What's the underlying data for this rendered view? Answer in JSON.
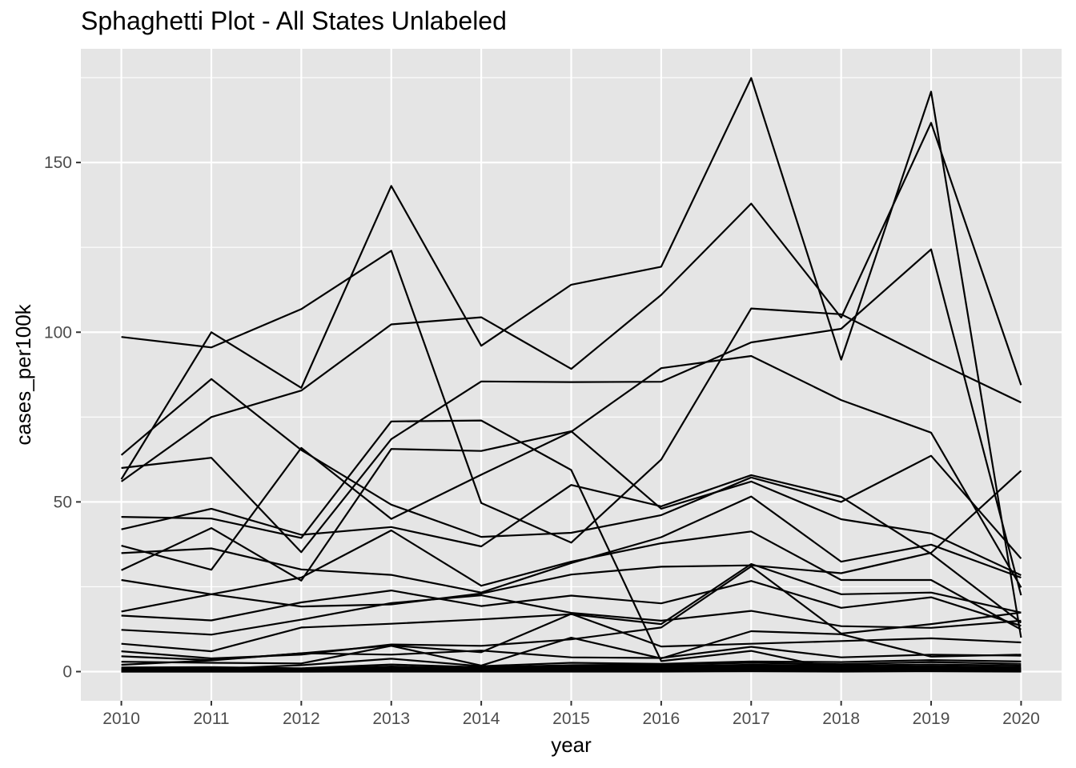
{
  "chart_data": {
    "type": "line",
    "title": "Sphaghetti Plot - All States Unlabeled",
    "xlabel": "year",
    "ylabel": "cases_per100k",
    "x": [
      2010,
      2011,
      2012,
      2013,
      2014,
      2015,
      2016,
      2017,
      2018,
      2019,
      2020
    ],
    "x_ticks": [
      "2010",
      "2011",
      "2012",
      "2013",
      "2014",
      "2015",
      "2016",
      "2017",
      "2018",
      "2019",
      "2020"
    ],
    "y_ticks": [
      0,
      50,
      100,
      150
    ],
    "xlim": [
      2009.55,
      2020.45
    ],
    "ylim": [
      -8.6,
      183.5
    ],
    "grid": true,
    "legend": "none",
    "colors": {
      "panel": "#e5e5e5",
      "grid": "#ffffff",
      "line": "#000000",
      "tick_text": "#4d4d4d",
      "tick_mark": "#333333"
    },
    "series": [
      {
        "values": [
          98.6,
          95.5,
          106.8,
          124.0,
          49.7,
          38.0,
          62.5,
          107.0,
          105.3,
          92.0,
          79.3
        ]
      },
      {
        "values": [
          63.8,
          86.2,
          65.3,
          49.2,
          39.7,
          40.9,
          46.1,
          57.2,
          50.0,
          63.6,
          33.3
        ]
      },
      {
        "values": [
          56.7,
          100.0,
          83.6,
          143.1,
          96.0,
          114.0,
          119.3,
          174.9,
          91.9,
          170.9,
          10.0
        ]
      },
      {
        "values": [
          56.0,
          75.0,
          82.8,
          102.3,
          104.4,
          89.2,
          111.0,
          137.9,
          104.3,
          161.7,
          84.4
        ]
      },
      {
        "values": [
          60.0,
          63.0,
          35.2,
          68.5,
          85.5,
          85.3,
          85.4,
          97.0,
          101.0,
          124.4,
          22.5
        ]
      },
      {
        "values": [
          45.6,
          45.1,
          39.4,
          73.7,
          74.0,
          59.4,
          3.1,
          6.1,
          0.5,
          1.0,
          0.8
        ]
      },
      {
        "values": [
          41.9,
          48.0,
          40.3,
          42.6,
          36.9,
          55.0,
          48.7,
          57.9,
          51.5,
          34.7,
          14.4
        ]
      },
      {
        "values": [
          29.9,
          42.3,
          26.8,
          65.6,
          65.0,
          70.8,
          48.0,
          56.0,
          44.9,
          40.7,
          28.4
        ]
      },
      {
        "values": [
          37.1,
          30.0,
          65.9,
          45.0,
          58.0,
          70.7,
          89.4,
          93.0,
          80.0,
          70.4,
          24.8
        ]
      },
      {
        "values": [
          34.9,
          36.3,
          30.1,
          28.5,
          23.3,
          32.0,
          39.6,
          51.6,
          32.4,
          37.4,
          27.7
        ]
      },
      {
        "values": [
          27.0,
          22.8,
          27.7,
          41.6,
          25.3,
          32.4,
          37.8,
          41.3,
          27.0,
          27.0,
          12.4
        ]
      },
      {
        "values": [
          17.7,
          22.8,
          19.2,
          19.8,
          23.0,
          28.6,
          30.9,
          31.3,
          29.0,
          35.0,
          59.2
        ]
      },
      {
        "values": [
          16.5,
          15.1,
          20.4,
          23.9,
          19.3,
          22.4,
          20.1,
          26.7,
          18.8,
          21.9,
          13.5
        ]
      },
      {
        "values": [
          12.3,
          10.9,
          15.3,
          20.2,
          22.5,
          17.3,
          15.0,
          17.9,
          13.4,
          12.9,
          15.0
        ]
      },
      {
        "values": [
          8.2,
          6.0,
          13.0,
          14.1,
          15.4,
          16.9,
          14.0,
          31.7,
          22.8,
          23.3,
          17.4
        ]
      },
      {
        "values": [
          6.0,
          3.9,
          5.0,
          8.0,
          7.6,
          9.5,
          13.0,
          31.0,
          11.2,
          14.0,
          17.4
        ]
      },
      {
        "values": [
          4.5,
          3.4,
          5.4,
          7.7,
          5.7,
          17.0,
          7.4,
          8.2,
          9.0,
          9.8,
          8.6
        ]
      },
      {
        "values": [
          2.9,
          2.6,
          2.4,
          7.6,
          1.8,
          10.0,
          3.9,
          11.9,
          11.0,
          4.4,
          5.0
        ]
      },
      {
        "values": [
          2.0,
          3.3,
          5.4,
          5.0,
          6.2,
          4.2,
          4.0,
          7.3,
          4.2,
          5.0,
          4.7
        ]
      },
      {
        "values": [
          1.0,
          0.8,
          1.9,
          3.8,
          1.6,
          2.6,
          2.3,
          3.0,
          2.8,
          3.4,
          3.0
        ]
      },
      {
        "values": [
          1.2,
          1.3,
          1.0,
          2.1,
          1.3,
          1.9,
          2.1,
          2.6,
          2.2,
          2.8,
          2.3
        ]
      },
      {
        "values": [
          0.8,
          0.9,
          0.8,
          1.5,
          1.0,
          1.5,
          1.7,
          2.0,
          1.8,
          2.1,
          1.8
        ]
      },
      {
        "values": [
          0.6,
          0.6,
          0.6,
          1.1,
          0.8,
          1.2,
          1.3,
          1.7,
          1.4,
          1.6,
          1.3
        ]
      },
      {
        "values": [
          0.4,
          0.4,
          0.5,
          0.8,
          0.6,
          0.9,
          1.0,
          1.3,
          1.1,
          1.2,
          1.0
        ]
      },
      {
        "values": [
          0.3,
          0.3,
          0.3,
          0.6,
          0.4,
          0.6,
          0.7,
          0.9,
          0.8,
          0.9,
          0.7
        ]
      },
      {
        "values": [
          0.2,
          0.2,
          0.2,
          0.4,
          0.3,
          0.4,
          0.5,
          0.6,
          0.5,
          0.6,
          0.5
        ]
      },
      {
        "values": [
          0.1,
          0.1,
          0.1,
          0.2,
          0.2,
          0.2,
          0.3,
          0.4,
          0.3,
          0.4,
          0.3
        ]
      },
      {
        "values": [
          0.0,
          0.0,
          0.0,
          0.1,
          0.1,
          0.1,
          0.1,
          0.2,
          0.1,
          0.2,
          0.1
        ]
      },
      {
        "values": [
          0.0,
          0.0,
          0.0,
          0.0,
          0.0,
          0.0,
          0.0,
          0.1,
          0.0,
          0.1,
          0.0
        ]
      }
    ]
  }
}
